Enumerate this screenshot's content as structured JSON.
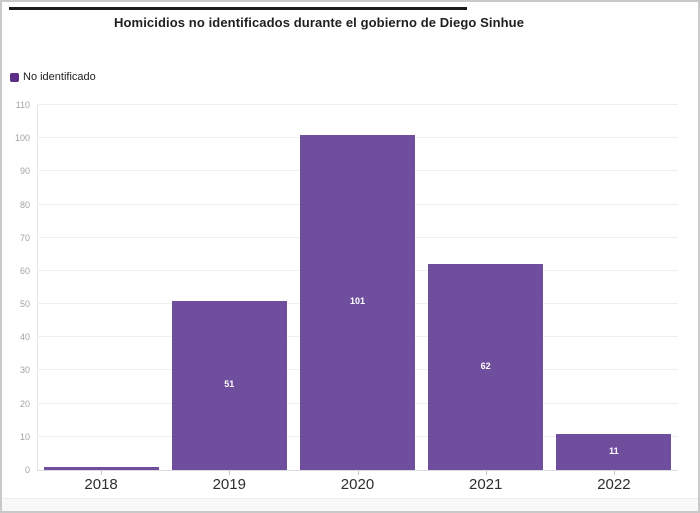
{
  "header": {
    "title": "Homicidios no identificados durante el gobierno de Diego Sinhue"
  },
  "legend": {
    "items": [
      {
        "label": "No identificado",
        "color": "#5c2e87"
      }
    ]
  },
  "chart_data": {
    "type": "bar",
    "title": "Homicidios no identificados durante el gobierno de Diego Sinhue",
    "categories": [
      "2018",
      "2019",
      "2020",
      "2021",
      "2022"
    ],
    "series": [
      {
        "name": "No identificado",
        "values": [
          1,
          51,
          101,
          62,
          11
        ]
      }
    ],
    "bar_value_labels": [
      "",
      "51",
      "101",
      "62",
      "11"
    ],
    "bar_color": "#6f4f9d",
    "xlabel": "",
    "ylabel": "",
    "ylim": [
      0,
      110
    ],
    "ytick_step": 10,
    "grid": true,
    "legend_position": "top-left"
  },
  "decor": {
    "top_rule_color": "#1a1a1a"
  }
}
